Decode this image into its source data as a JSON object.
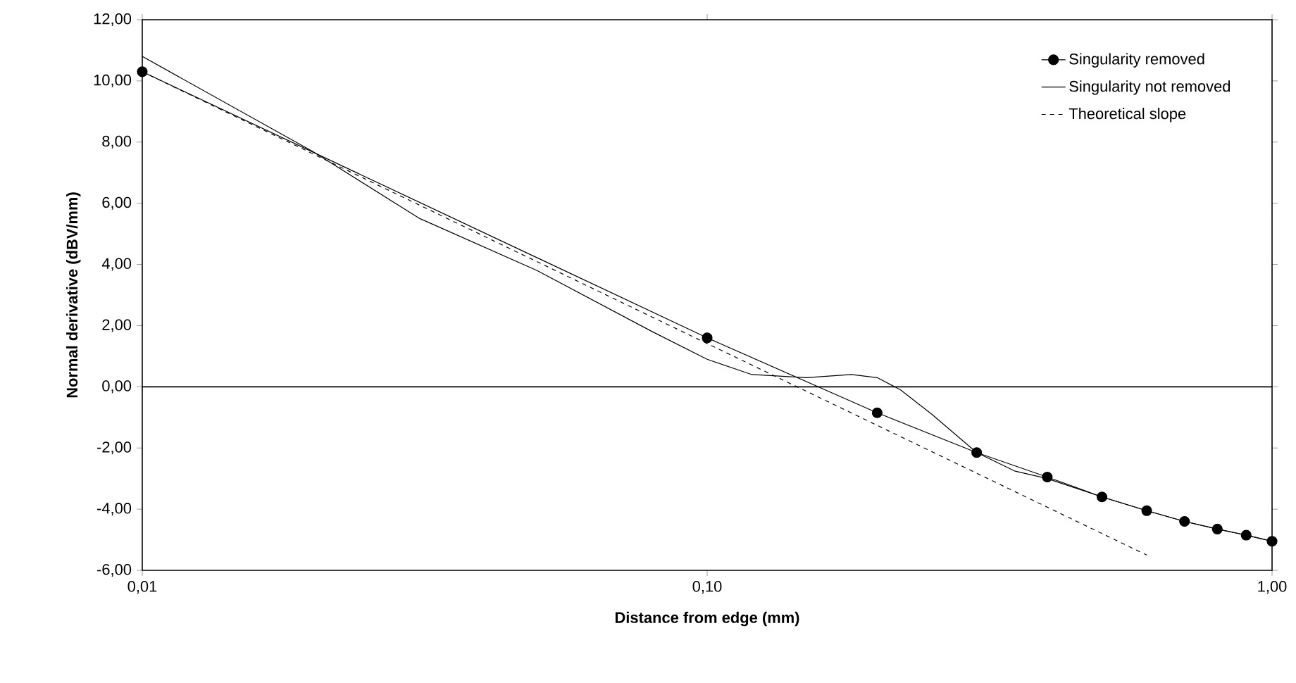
{
  "chart_data": {
    "type": "line",
    "xlabel": "Distance from edge (mm)",
    "ylabel": "Normal derivative (dBV/mm)",
    "log": "x",
    "xlim": [
      0.01,
      1
    ],
    "ylim": [
      -6,
      12
    ],
    "xticks": [
      {
        "value": 0.01,
        "label": "0,01"
      },
      {
        "value": 0.1,
        "label": "0,10"
      },
      {
        "value": 1,
        "label": "1,00"
      }
    ],
    "yticks": [
      {
        "value": -6,
        "label": "-6,00"
      },
      {
        "value": -4,
        "label": "-4,00"
      },
      {
        "value": -2,
        "label": "-2,00"
      },
      {
        "value": 0,
        "label": "0,00"
      },
      {
        "value": 2,
        "label": "2,00"
      },
      {
        "value": 4,
        "label": "4,00"
      },
      {
        "value": 6,
        "label": "6,00"
      },
      {
        "value": 8,
        "label": "8,00"
      },
      {
        "value": 10,
        "label": "10,00"
      },
      {
        "value": 12,
        "label": "12,00"
      }
    ],
    "grid": false,
    "legend": "top right",
    "ref_lines": [
      {
        "axis": "y",
        "value": 0,
        "color": "#000000"
      }
    ],
    "series": [
      {
        "name": "Singularity removed",
        "color": "#000000",
        "marker": "circle",
        "line_style": "solid",
        "x": [
          0.01,
          0.1,
          0.2,
          0.3,
          0.4,
          0.5,
          0.6,
          0.7,
          0.8,
          0.9,
          1.0
        ],
        "values": [
          10.3,
          1.6,
          -0.85,
          -2.15,
          -2.95,
          -3.6,
          -4.05,
          -4.4,
          -4.65,
          -4.85,
          -5.05
        ]
      },
      {
        "name": "Singularity not removed",
        "color": "#000000",
        "marker": "none",
        "line_style": "solid",
        "x": [
          0.01,
          0.02,
          0.031,
          0.05,
          0.08,
          0.1,
          0.12,
          0.15,
          0.18,
          0.2,
          0.22,
          0.25,
          0.3,
          0.35,
          0.4,
          0.5,
          0.6,
          0.7,
          0.8,
          0.9,
          1.0
        ],
        "values": [
          10.8,
          7.7,
          5.5,
          3.8,
          1.8,
          0.9,
          0.4,
          0.3,
          0.4,
          0.3,
          -0.1,
          -0.9,
          -2.15,
          -2.75,
          -3.0,
          -3.6,
          -4.05,
          -4.4,
          -4.65,
          -4.85,
          -5.05
        ]
      },
      {
        "name": "Theoretical slope",
        "color": "#000000",
        "marker": "none",
        "line_style": "dashed",
        "x": [
          0.01,
          0.6
        ],
        "values": [
          10.3,
          -5.5
        ]
      }
    ]
  }
}
